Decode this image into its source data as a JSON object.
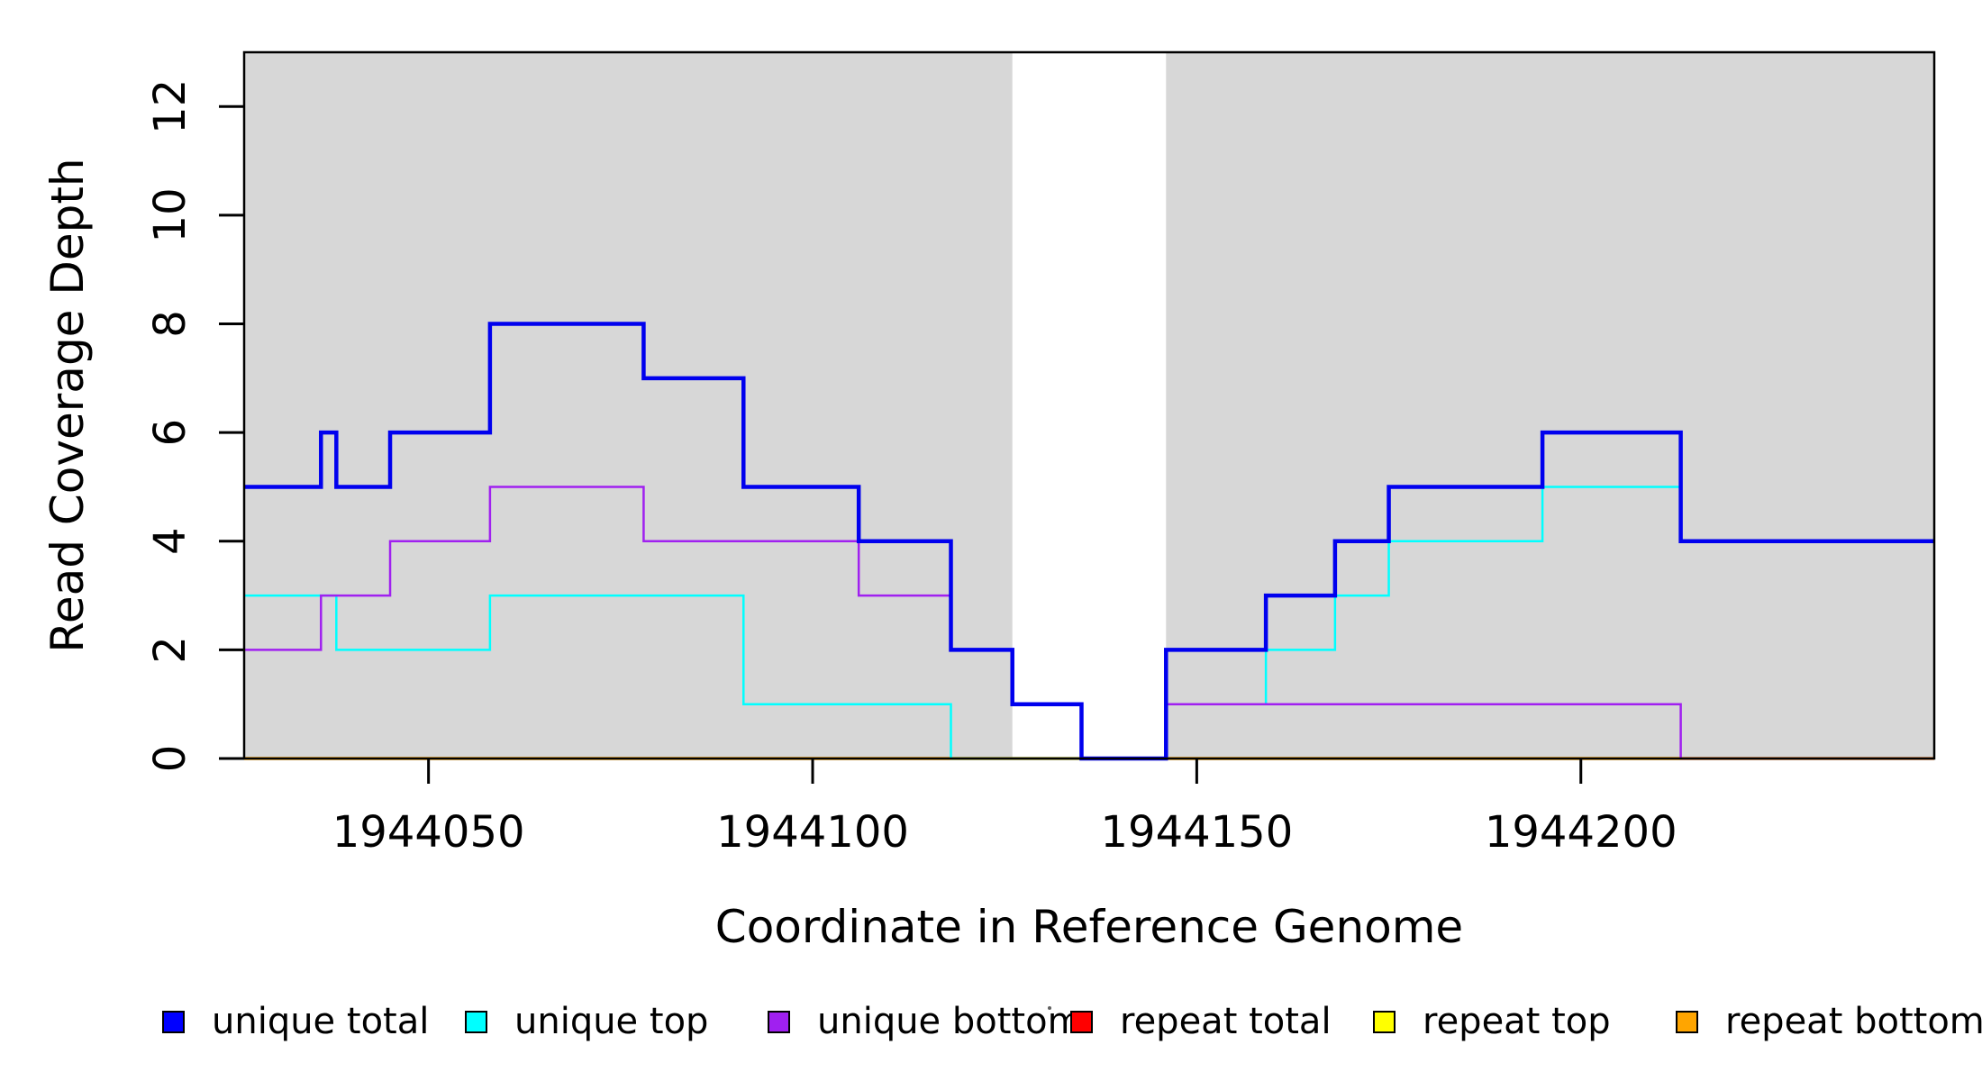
{
  "figure": {
    "background_color": "#ffffff",
    "plot_background_color": "#ffffff",
    "shading_color": "#D7D7D7",
    "axis_color": "#000000"
  },
  "chart_data": {
    "type": "line",
    "subtype": "step-post-coverage-plot",
    "title": "",
    "xlabel": "Coordinate in Reference Genome",
    "ylabel": "Read Coverage Depth",
    "xlim": [
      1944026,
      1944246
    ],
    "ylim": [
      0,
      13
    ],
    "x_ticks": [
      1944050,
      1944100,
      1944150,
      1944200
    ],
    "y_ticks": [
      0,
      2,
      4,
      6,
      8,
      10,
      12
    ],
    "grid": false,
    "legend_position": "bottom",
    "shaded_regions": [
      {
        "name": "gray-region-left",
        "x0": 1944026,
        "x1": 1944126
      },
      {
        "name": "gray-region-right",
        "x0": 1944146,
        "x1": 1944246
      }
    ],
    "x_end": 1944246,
    "draw_order": [
      "repeat total",
      "repeat top",
      "repeat bottom",
      "unique top",
      "unique bottom",
      "unique total"
    ],
    "series": [
      {
        "name": "unique total",
        "color": "#0000EE",
        "line_width": 4.5,
        "steps": [
          [
            1944026,
            5
          ],
          [
            1944036,
            6
          ],
          [
            1944038,
            5
          ],
          [
            1944045,
            6
          ],
          [
            1944058,
            8
          ],
          [
            1944078,
            7
          ],
          [
            1944091,
            5
          ],
          [
            1944106,
            4
          ],
          [
            1944118,
            2
          ],
          [
            1944126,
            1
          ],
          [
            1944135,
            0
          ],
          [
            1944146,
            2
          ],
          [
            1944159,
            3
          ],
          [
            1944168,
            4
          ],
          [
            1944175,
            5
          ],
          [
            1944195,
            6
          ],
          [
            1944213,
            4
          ]
        ]
      },
      {
        "name": "unique top",
        "color": "#00FFFF",
        "line_width": 2.5,
        "steps": [
          [
            1944026,
            3
          ],
          [
            1944038,
            2
          ],
          [
            1944058,
            3
          ],
          [
            1944091,
            1
          ],
          [
            1944118,
            0
          ],
          [
            1944146,
            1
          ],
          [
            1944159,
            2
          ],
          [
            1944168,
            3
          ],
          [
            1944175,
            4
          ],
          [
            1944195,
            5
          ],
          [
            1944213,
            4
          ]
        ]
      },
      {
        "name": "unique bottom",
        "color": "#A020F0",
        "line_width": 2.5,
        "steps": [
          [
            1944026,
            2
          ],
          [
            1944036,
            3
          ],
          [
            1944045,
            4
          ],
          [
            1944058,
            5
          ],
          [
            1944078,
            4
          ],
          [
            1944106,
            3
          ],
          [
            1944118,
            2
          ],
          [
            1944126,
            1
          ],
          [
            1944135,
            0
          ],
          [
            1944146,
            1
          ],
          [
            1944213,
            0
          ]
        ]
      },
      {
        "name": "repeat total",
        "color": "#FF0000",
        "line_width": 2.5,
        "steps": [
          [
            1944026,
            0
          ]
        ]
      },
      {
        "name": "repeat top",
        "color": "#FFFF00",
        "line_width": 2.5,
        "steps": [
          [
            1944026,
            0
          ]
        ]
      },
      {
        "name": "repeat bottom",
        "color": "#FFA500",
        "line_width": 3.5,
        "steps": [
          [
            1944026,
            0
          ]
        ]
      }
    ]
  },
  "legend": {
    "items": [
      {
        "label": "unique total",
        "color": "#0000FF"
      },
      {
        "label": "unique top",
        "color": "#00FFFF"
      },
      {
        "label": "unique bottom",
        "color": "#A020F0"
      },
      {
        "label": "repeat total",
        "color": "#FF0000"
      },
      {
        "label": "repeat top",
        "color": "#FFFF00"
      },
      {
        "label": "repeat bottom",
        "color": "#FFA500"
      }
    ]
  }
}
